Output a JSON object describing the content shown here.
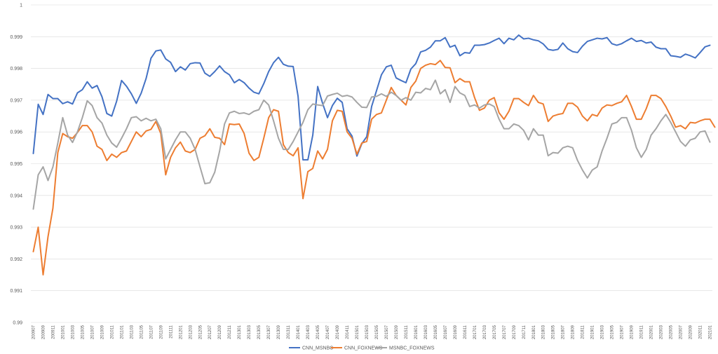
{
  "chart_data": {
    "type": "line",
    "title": "",
    "xlabel": "",
    "ylabel": "",
    "ylim": [
      0.99,
      1
    ],
    "yticks": [
      "0.99",
      "0.991",
      "0.992",
      "0.993",
      "0.994",
      "0.995",
      "0.996",
      "0.997",
      "0.998",
      "0.999",
      "1"
    ],
    "grid": "horizontal",
    "legend_position": "bottom",
    "x_start": "200907",
    "x_count": 139,
    "x_tick_labels": [
      "200907",
      "200909",
      "200911",
      "201001",
      "201003",
      "201005",
      "201007",
      "201009",
      "201011",
      "201101",
      "201103",
      "201105",
      "201107",
      "201109",
      "201111",
      "201201",
      "201203",
      "201205",
      "201207",
      "201209",
      "201211",
      "201301",
      "201303",
      "201305",
      "201307",
      "201309",
      "201311",
      "201401",
      "201403",
      "201405",
      "201407",
      "201409",
      "201411",
      "201501",
      "201503",
      "201505",
      "201507",
      "201509",
      "201511",
      "201601",
      "201603",
      "201605",
      "201607",
      "201609",
      "201611",
      "201701",
      "201703",
      "201705",
      "201707",
      "201709",
      "201711",
      "201801",
      "201803",
      "201805",
      "201807",
      "201809",
      "201811",
      "201901",
      "201903",
      "201905",
      "201907",
      "201909",
      "201911",
      "202001",
      "202003",
      "202005",
      "202007",
      "202009",
      "202011",
      "202101"
    ],
    "series": [
      {
        "name": "CNN_MSNBC",
        "color": "#4472C4",
        "values": [
          0.99532,
          0.99687,
          0.99655,
          0.99718,
          0.99705,
          0.99705,
          0.99689,
          0.99695,
          0.99688,
          0.99723,
          0.99733,
          0.99758,
          0.99738,
          0.99746,
          0.99711,
          0.99658,
          0.9965,
          0.99697,
          0.99762,
          0.99744,
          0.9972,
          0.9969,
          0.99722,
          0.99768,
          0.99832,
          0.99855,
          0.99858,
          0.9983,
          0.99819,
          0.9979,
          0.99805,
          0.99795,
          0.99815,
          0.99818,
          0.99817,
          0.99785,
          0.99775,
          0.9979,
          0.99808,
          0.9979,
          0.9978,
          0.99755,
          0.99765,
          0.99755,
          0.99738,
          0.99725,
          0.9972,
          0.99752,
          0.9979,
          0.99818,
          0.99835,
          0.99813,
          0.99807,
          0.99806,
          0.99712,
          0.99512,
          0.99512,
          0.9959,
          0.99743,
          0.9969,
          0.99645,
          0.99683,
          0.99706,
          0.99693,
          0.9961,
          0.99587,
          0.99524,
          0.99563,
          0.99585,
          0.9968,
          0.9973,
          0.9978,
          0.99805,
          0.9981,
          0.9977,
          0.99762,
          0.99755,
          0.99798,
          0.99815,
          0.99852,
          0.99857,
          0.99867,
          0.99887,
          0.99887,
          0.99897,
          0.99867,
          0.99873,
          0.9984,
          0.9985,
          0.99848,
          0.99873,
          0.99873,
          0.99875,
          0.9988,
          0.99888,
          0.99895,
          0.99878,
          0.99895,
          0.9989,
          0.99905,
          0.99893,
          0.99895,
          0.9989,
          0.99887,
          0.99877,
          0.9986,
          0.99857,
          0.9986,
          0.9988,
          0.99862,
          0.99853,
          0.9985,
          0.9987,
          0.99885,
          0.9989,
          0.99895,
          0.99893,
          0.99897,
          0.99878,
          0.99873,
          0.99878,
          0.99887,
          0.99895,
          0.99885,
          0.99888,
          0.9988,
          0.99883,
          0.99867,
          0.99862,
          0.99862,
          0.9984,
          0.99838,
          0.99835,
          0.99845,
          0.9984,
          0.99833,
          0.9985,
          0.99868,
          0.99873
        ]
      },
      {
        "name": "CNN_FOXNEWS",
        "color": "#ED7D31",
        "values": [
          0.99223,
          0.993,
          0.9915,
          0.9927,
          0.9936,
          0.99535,
          0.99595,
          0.99585,
          0.9958,
          0.99598,
          0.9962,
          0.9962,
          0.996,
          0.99555,
          0.99545,
          0.9951,
          0.9953,
          0.9952,
          0.99535,
          0.9954,
          0.9957,
          0.996,
          0.99585,
          0.99603,
          0.99608,
          0.99633,
          0.99595,
          0.99465,
          0.9952,
          0.9955,
          0.99568,
          0.9954,
          0.99535,
          0.99545,
          0.9958,
          0.99588,
          0.9961,
          0.99583,
          0.9958,
          0.9956,
          0.99625,
          0.99623,
          0.99625,
          0.99595,
          0.99533,
          0.9951,
          0.9952,
          0.9958,
          0.99645,
          0.9967,
          0.99665,
          0.9956,
          0.99535,
          0.99525,
          0.9955,
          0.9939,
          0.99475,
          0.99485,
          0.9954,
          0.99515,
          0.99545,
          0.99635,
          0.99668,
          0.99665,
          0.996,
          0.9958,
          0.9953,
          0.99565,
          0.9957,
          0.9964,
          0.99655,
          0.9966,
          0.997,
          0.9974,
          0.99715,
          0.997,
          0.99685,
          0.9974,
          0.9976,
          0.998,
          0.9981,
          0.99815,
          0.99812,
          0.99825,
          0.99803,
          0.99802,
          0.99755,
          0.99768,
          0.99758,
          0.99758,
          0.99708,
          0.99668,
          0.99675,
          0.997,
          0.99708,
          0.9966,
          0.9964,
          0.99665,
          0.99705,
          0.99705,
          0.99693,
          0.99683,
          0.99715,
          0.99693,
          0.99688,
          0.99633,
          0.9965,
          0.99655,
          0.99658,
          0.9969,
          0.9969,
          0.99678,
          0.9965,
          0.99635,
          0.99655,
          0.9965,
          0.99675,
          0.99685,
          0.99683,
          0.9969,
          0.99695,
          0.99715,
          0.9968,
          0.9964,
          0.9964,
          0.99673,
          0.99715,
          0.99715,
          0.99705,
          0.9968,
          0.9965,
          0.99615,
          0.9962,
          0.9961,
          0.9963,
          0.99628,
          0.99635,
          0.9964,
          0.9964,
          0.99615
        ]
      },
      {
        "name": "MSNBC_FOXNEWS",
        "color": "#A5A5A5",
        "values": [
          0.99357,
          0.99465,
          0.9949,
          0.99447,
          0.9949,
          0.99565,
          0.99645,
          0.9959,
          0.99567,
          0.996,
          0.99645,
          0.99698,
          0.99683,
          0.99645,
          0.99628,
          0.9959,
          0.99565,
          0.99552,
          0.9958,
          0.9961,
          0.99645,
          0.99648,
          0.99635,
          0.99643,
          0.99635,
          0.9964,
          0.9961,
          0.99515,
          0.99545,
          0.99575,
          0.996,
          0.996,
          0.9958,
          0.99545,
          0.9949,
          0.99437,
          0.9944,
          0.99473,
          0.9954,
          0.99625,
          0.9966,
          0.99665,
          0.99658,
          0.9966,
          0.99655,
          0.99665,
          0.9967,
          0.997,
          0.99685,
          0.99635,
          0.9958,
          0.99545,
          0.99545,
          0.9957,
          0.996,
          0.9963,
          0.9967,
          0.99688,
          0.99685,
          0.99683,
          0.99713,
          0.99718,
          0.99722,
          0.99712,
          0.99715,
          0.9971,
          0.99693,
          0.99678,
          0.99677,
          0.9971,
          0.99712,
          0.9972,
          0.99712,
          0.99725,
          0.99715,
          0.997,
          0.99708,
          0.997,
          0.99725,
          0.99723,
          0.99737,
          0.99733,
          0.99763,
          0.9972,
          0.99733,
          0.99693,
          0.99743,
          0.99723,
          0.99715,
          0.9968,
          0.99685,
          0.99675,
          0.99685,
          0.99688,
          0.9968,
          0.9964,
          0.9961,
          0.9961,
          0.99625,
          0.9962,
          0.99605,
          0.99575,
          0.9961,
          0.9959,
          0.9959,
          0.99525,
          0.99535,
          0.99533,
          0.9955,
          0.99555,
          0.9955,
          0.9951,
          0.9948,
          0.99455,
          0.9948,
          0.9949,
          0.9954,
          0.9958,
          0.99625,
          0.9963,
          0.99645,
          0.99645,
          0.99605,
          0.9955,
          0.9952,
          0.99545,
          0.9959,
          0.9961,
          0.99635,
          0.99655,
          0.9963,
          0.996,
          0.9957,
          0.99555,
          0.99575,
          0.9958,
          0.996,
          0.99603,
          0.99568
        ]
      }
    ]
  }
}
